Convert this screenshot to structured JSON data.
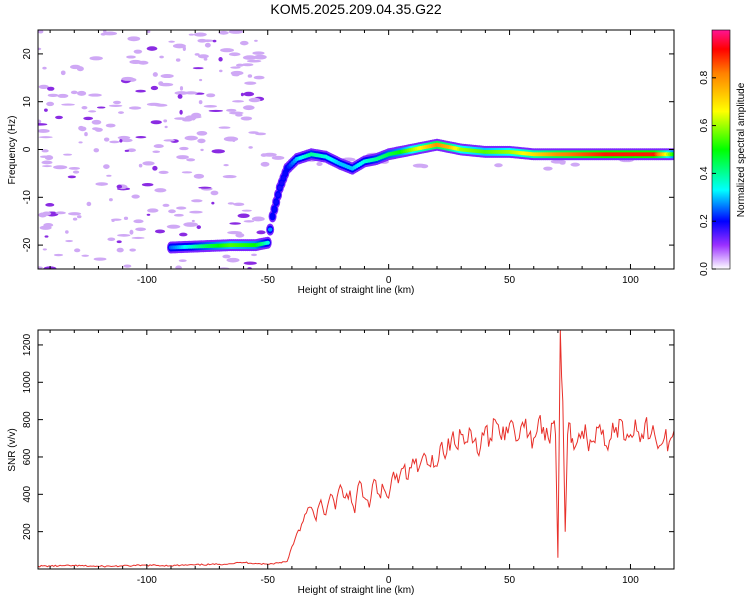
{
  "title": "KOM5.2025.209.04.35.G22",
  "chart_data": [
    {
      "type": "heatmap",
      "xlabel": "Height of straight line (km)",
      "ylabel": "Frequency (Hz)",
      "xlim": [
        -145,
        118
      ],
      "ylim": [
        -25,
        25
      ],
      "xticks": [
        -100,
        -50,
        0,
        50,
        100
      ],
      "yticks": [
        20,
        10,
        0,
        -10,
        -20
      ],
      "colorbar": {
        "label": "Normalized spectral amplitude",
        "range": [
          0.0,
          1.0
        ],
        "ticks": [
          "0.0",
          "0.2",
          "0.4",
          "0.6",
          "0.8"
        ],
        "tick_values": [
          0.0,
          0.2,
          0.4,
          0.6,
          0.8
        ]
      },
      "ridge": {
        "x": [
          -90,
          -75,
          -65,
          -55,
          -50,
          -48,
          -45,
          -42,
          -38,
          -32,
          -26,
          -20,
          -15,
          -10,
          -5,
          0,
          5,
          10,
          15,
          20,
          25,
          30,
          40,
          50,
          60,
          70,
          80,
          90,
          100,
          110,
          118
        ],
        "y": [
          -20.5,
          -20.2,
          -20,
          -20,
          -19.5,
          -14,
          -8,
          -4,
          -2,
          -1,
          -1.5,
          -3,
          -4,
          -2.5,
          -2,
          -1,
          -0.5,
          0,
          0.5,
          1,
          0.5,
          0,
          -0.5,
          -0.5,
          -1,
          -1,
          -1,
          -1,
          -1,
          -1,
          -1
        ],
        "amplitude": [
          0.25,
          0.45,
          0.55,
          0.5,
          0.35,
          0.2,
          0.18,
          0.2,
          0.3,
          0.4,
          0.35,
          0.3,
          0.3,
          0.35,
          0.4,
          0.45,
          0.5,
          0.6,
          0.7,
          0.8,
          0.75,
          0.6,
          0.55,
          0.6,
          0.7,
          0.8,
          0.85,
          0.9,
          0.9,
          0.9,
          0.5
        ]
      }
    },
    {
      "type": "line",
      "xlabel": "Height of straight line (km)",
      "ylabel": "SNR (v/v)",
      "xlim": [
        -145,
        118
      ],
      "ylim": [
        0,
        1280
      ],
      "xticks": [
        -100,
        -50,
        0,
        50,
        100
      ],
      "yticks": [
        200,
        400,
        600,
        800,
        1000,
        1200
      ],
      "color": "#e8302a",
      "series": [
        {
          "x": [
            -145,
            -130,
            -120,
            -110,
            -100,
            -90,
            -80,
            -70,
            -60,
            -55,
            -50,
            -45,
            -42,
            -40,
            -38,
            -36,
            -34,
            -32,
            -30,
            -28,
            -26,
            -24,
            -22,
            -20,
            -18,
            -16,
            -14,
            -12,
            -10,
            -8,
            -6,
            -4,
            -2,
            0,
            2,
            4,
            6,
            8,
            10,
            12,
            14,
            16,
            18,
            20,
            22,
            24,
            26,
            28,
            30,
            32,
            34,
            36,
            38,
            40,
            42,
            44,
            46,
            48,
            50,
            52,
            54,
            56,
            58,
            60,
            62,
            64,
            66,
            68,
            69,
            70,
            71,
            72,
            73,
            74,
            75,
            76,
            78,
            80,
            82,
            84,
            86,
            88,
            90,
            92,
            94,
            96,
            98,
            100,
            102,
            104,
            106,
            108,
            110,
            112,
            114,
            116,
            118
          ],
          "y": [
            15,
            18,
            14,
            16,
            20,
            18,
            22,
            25,
            35,
            30,
            25,
            35,
            40,
            120,
            190,
            240,
            300,
            330,
            260,
            370,
            290,
            400,
            320,
            450,
            380,
            420,
            300,
            470,
            380,
            330,
            480,
            400,
            430,
            380,
            520,
            460,
            540,
            480,
            590,
            520,
            600,
            560,
            610,
            550,
            680,
            620,
            700,
            650,
            720,
            680,
            740,
            700,
            650,
            760,
            700,
            800,
            720,
            690,
            780,
            740,
            700,
            760,
            720,
            700,
            800,
            760,
            700,
            780,
            720,
            60,
            1280,
            900,
            200,
            720,
            780,
            700,
            680,
            740,
            700,
            680,
            760,
            720,
            660,
            700,
            760,
            800,
            690,
            720,
            800,
            680,
            780,
            700,
            720,
            660,
            700,
            680,
            740
          ]
        }
      ]
    }
  ]
}
